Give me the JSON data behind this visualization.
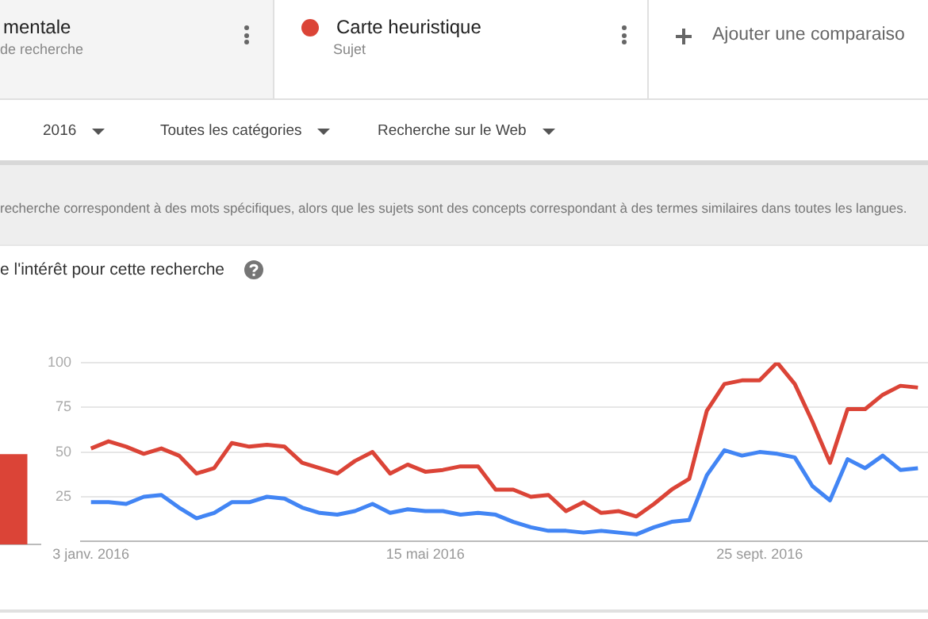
{
  "chart_data": [
    {
      "type": "bar",
      "categories": [
        null
      ],
      "series": [
        {
          "color": "#db4437",
          "values": [
            49
          ]
        }
      ],
      "ylim": [
        0,
        100
      ],
      "tick_labels": false
    },
    {
      "type": "line",
      "title": "e l'intérêt pour cette recherche",
      "annotations": [
        "mentale",
        "de recherche",
        "Sujet",
        "Ajouter une comparaiso",
        "2016",
        "Toutes les catégories",
        "Recherche sur le Web",
        "recherche correspondent à des mots spécifiques, alors que les sujets sont des concepts correspondant à des termes similaires dans toutes les langues."
      ],
      "x": [
        "2016-01-03",
        "2016-01-10",
        "2016-01-17",
        "2016-01-24",
        "2016-01-31",
        "2016-02-07",
        "2016-02-14",
        "2016-02-21",
        "2016-02-28",
        "2016-03-06",
        "2016-03-13",
        "2016-03-20",
        "2016-03-27",
        "2016-04-03",
        "2016-04-10",
        "2016-04-17",
        "2016-04-24",
        "2016-05-01",
        "2016-05-08",
        "2016-05-15",
        "2016-05-22",
        "2016-05-29",
        "2016-06-05",
        "2016-06-12",
        "2016-06-19",
        "2016-06-26",
        "2016-07-03",
        "2016-07-10",
        "2016-07-17",
        "2016-07-24",
        "2016-07-31",
        "2016-08-07",
        "2016-08-14",
        "2016-08-21",
        "2016-08-28",
        "2016-09-04",
        "2016-09-11",
        "2016-09-18",
        "2016-09-25",
        "2016-10-02",
        "2016-10-09",
        "2016-10-16",
        "2016-10-23",
        "2016-10-30",
        "2016-11-06",
        "2016-11-13",
        "2016-11-20",
        "2016-11-27"
      ],
      "series": [
        {
          "color": "#4285f4",
          "values": [
            22,
            22,
            21,
            25,
            26,
            19,
            13,
            16,
            22,
            22,
            25,
            24,
            19,
            16,
            15,
            17,
            21,
            16,
            18,
            17,
            17,
            15,
            16,
            15,
            11,
            8,
            6,
            6,
            5,
            6,
            5,
            4,
            8,
            11,
            12,
            37,
            51,
            48,
            50,
            49,
            47,
            31,
            23,
            46,
            41,
            48,
            40,
            41
          ]
        },
        {
          "name": "Carte heuristique",
          "color": "#db4437",
          "values": [
            52,
            56,
            53,
            49,
            52,
            48,
            38,
            41,
            55,
            53,
            54,
            53,
            44,
            41,
            38,
            45,
            50,
            38,
            43,
            39,
            40,
            42,
            42,
            29,
            29,
            25,
            26,
            17,
            22,
            16,
            17,
            14,
            21,
            29,
            35,
            73,
            88,
            90,
            90,
            100,
            88,
            67,
            44,
            74,
            74,
            82,
            87,
            86
          ]
        }
      ],
      "xlim": [
        "2015-12-30",
        "2016-12-01"
      ],
      "xticks": [
        {
          "value": "2016-01-03",
          "label": "3 janv. 2016"
        },
        {
          "value": "2016-05-15",
          "label": "15 mai 2016"
        },
        {
          "value": "2016-09-25",
          "label": "25 sept. 2016"
        }
      ],
      "ylim": [
        0,
        100
      ],
      "yticks": [
        25,
        50,
        75,
        100
      ],
      "grid": "y",
      "legend": "top",
      "marker": "none"
    }
  ]
}
